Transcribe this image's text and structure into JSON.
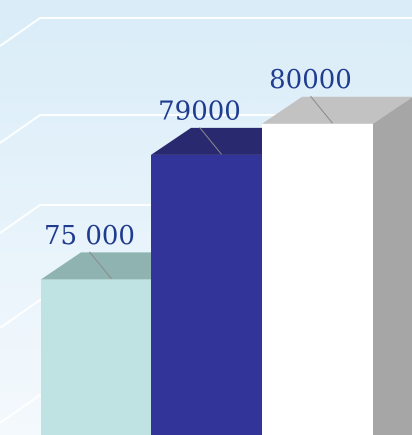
{
  "colors": {
    "background_top": "#d9ecf8",
    "background_bottom": "#f4f9fd",
    "label_text": "#1f3c8f",
    "gridline": "#ffffff"
  },
  "chart_data": {
    "type": "bar",
    "style": "3d",
    "grid": true,
    "legend": "none",
    "ylim": [
      70000,
      81500
    ],
    "bars": [
      {
        "value": 75000,
        "label": "75 000",
        "front_color": "#bfe3e3",
        "top_color": "#8fb3b1",
        "side_color": "#a9cccc"
      },
      {
        "value": 79000,
        "label": "79000",
        "front_color": "#33349a",
        "top_color": "#28296f",
        "side_color": "#2c2d85"
      },
      {
        "value": 80000,
        "label": "80000",
        "front_color": "#ffffff",
        "top_color": "#c2c2c2",
        "side_color": "#a6a6a6"
      }
    ]
  }
}
